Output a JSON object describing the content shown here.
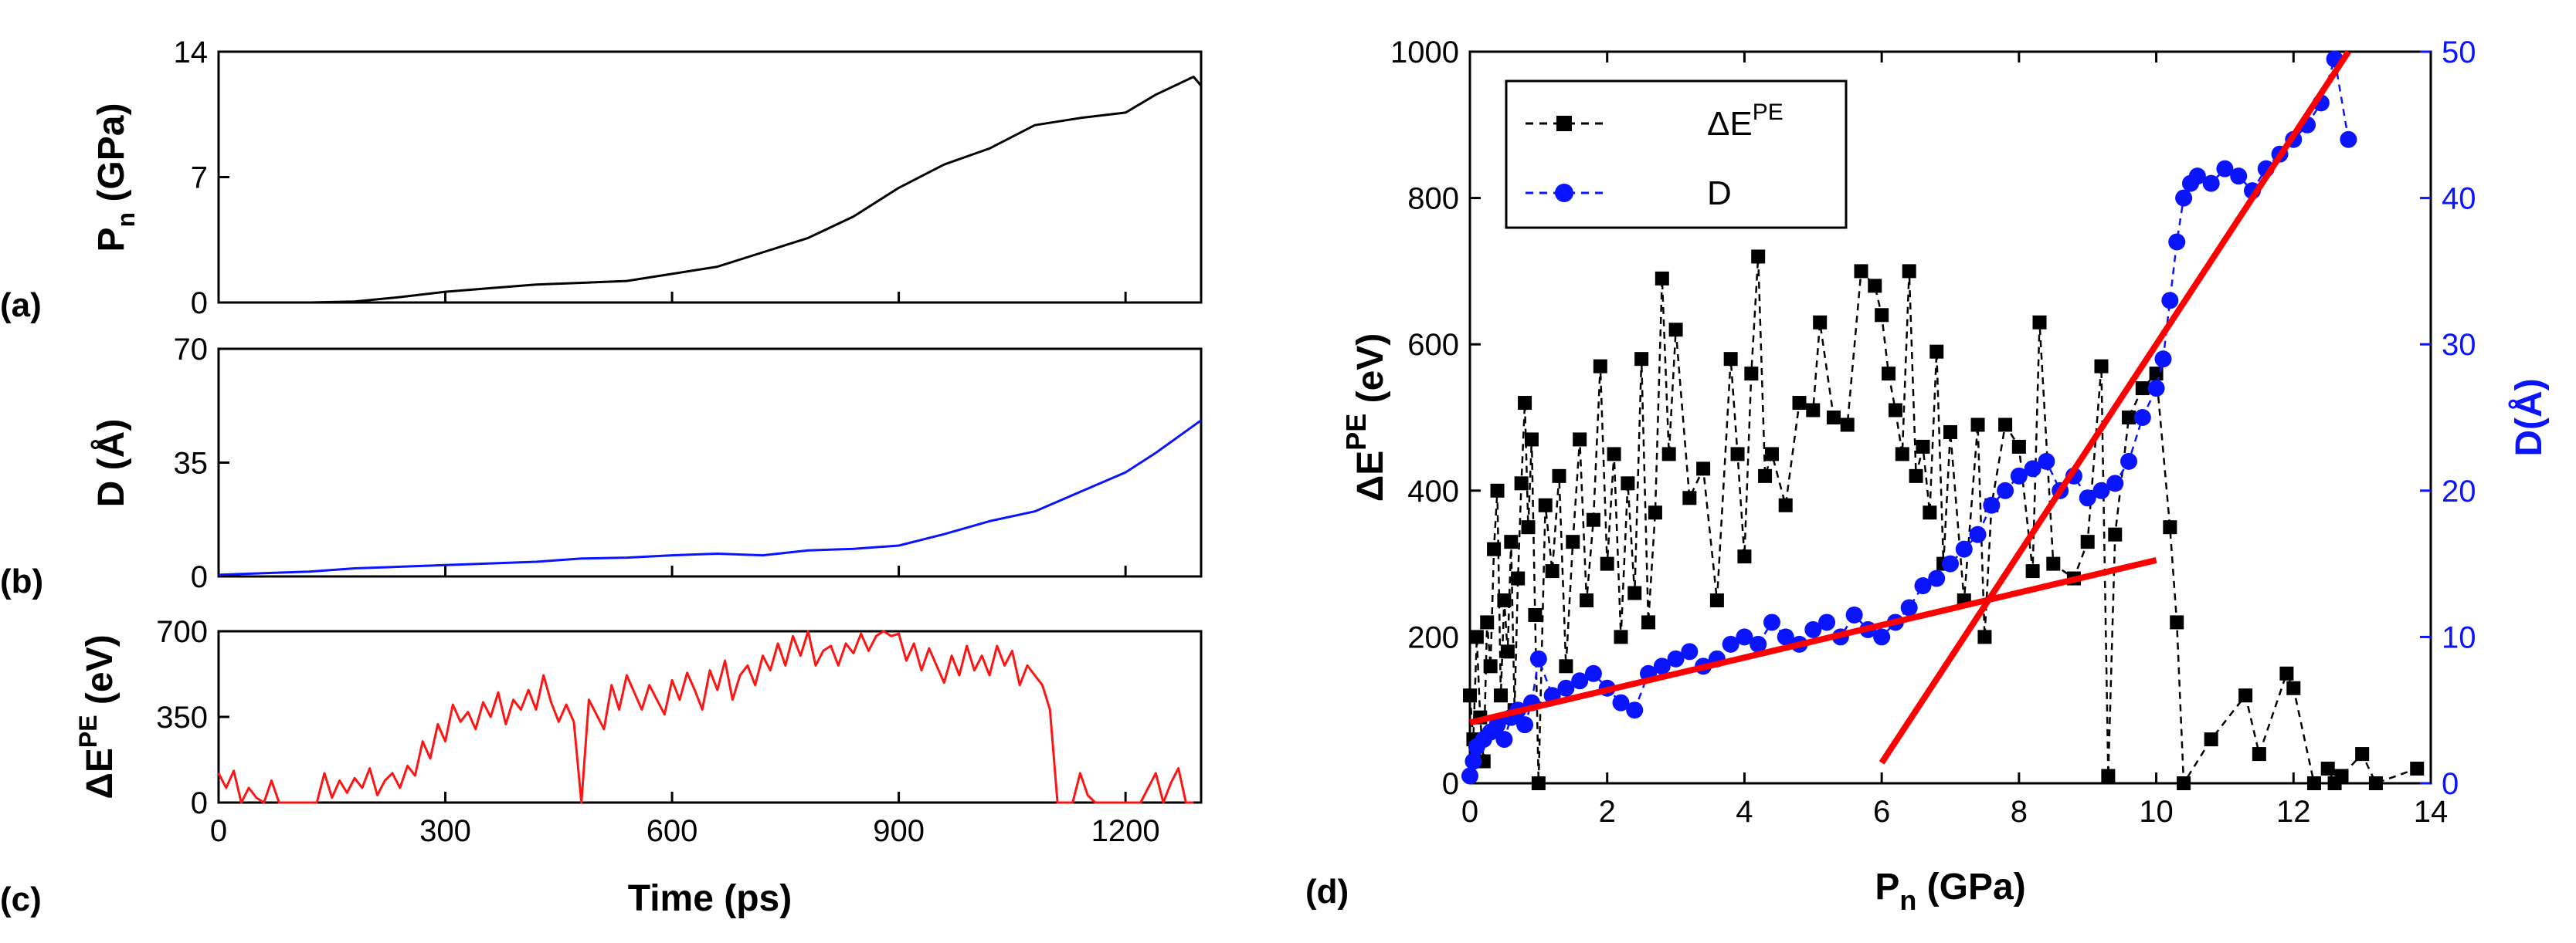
{
  "panel_labels": {
    "a": "(a)",
    "b": "(b)",
    "c": "(c)",
    "d": "(d)"
  },
  "colors": {
    "black": "#000000",
    "blue": "#0a14ff",
    "red": "#ff1414",
    "fit": "#ff0000"
  },
  "chart_data": [
    {
      "id": "a",
      "type": "line",
      "xlabel": "",
      "ylabel_main": "P",
      "ylabel_sub": "n",
      "ylabel_rest": " (GPa)",
      "xlim": [
        0,
        1300
      ],
      "ylim": [
        0,
        14
      ],
      "yticks": [
        0,
        7,
        14
      ],
      "yticklabels": [
        "0",
        "7",
        "14"
      ],
      "x": [
        0,
        60,
        120,
        180,
        240,
        300,
        360,
        420,
        480,
        540,
        600,
        660,
        720,
        780,
        840,
        900,
        960,
        1020,
        1080,
        1140,
        1200,
        1240,
        1270,
        1290,
        1300
      ],
      "y": [
        0,
        0,
        0,
        0.05,
        0.3,
        0.6,
        0.8,
        1.0,
        1.1,
        1.2,
        1.6,
        2.0,
        2.8,
        3.6,
        4.8,
        6.4,
        7.7,
        8.6,
        9.9,
        10.3,
        10.6,
        11.6,
        12.2,
        12.6,
        12.1
      ],
      "color": "#000000"
    },
    {
      "id": "b",
      "type": "line",
      "ylabel": "D (Å)",
      "xlim": [
        0,
        1300
      ],
      "ylim": [
        0,
        70
      ],
      "yticks": [
        0,
        35,
        70
      ],
      "yticklabels": [
        "0",
        "35",
        "70"
      ],
      "x": [
        0,
        60,
        120,
        180,
        240,
        300,
        360,
        420,
        480,
        540,
        600,
        660,
        720,
        780,
        840,
        900,
        960,
        1020,
        1080,
        1140,
        1200,
        1240,
        1270,
        1300
      ],
      "y": [
        0.5,
        1.0,
        1.5,
        2.5,
        3.0,
        3.5,
        4.0,
        4.5,
        5.5,
        5.8,
        6.5,
        7.0,
        6.5,
        8.0,
        8.5,
        9.5,
        13.0,
        17.0,
        20.0,
        26.0,
        32.0,
        38.0,
        43.0,
        48.0
      ],
      "color": "#0a14ff"
    },
    {
      "id": "c",
      "type": "line",
      "ylabel_main": "ΔE",
      "ylabel_sup": "PE",
      "ylabel_rest": " (eV)",
      "xlabel": "Time (ps)",
      "xlim": [
        0,
        1300
      ],
      "ylim": [
        0,
        700
      ],
      "yticks": [
        0,
        350,
        700
      ],
      "yticklabels": [
        "0",
        "350",
        "700"
      ],
      "xticks": [
        0,
        300,
        600,
        900,
        1200
      ],
      "xticklabels": [
        "0",
        "300",
        "600",
        "900",
        "1200"
      ],
      "x": [
        0,
        10,
        20,
        30,
        40,
        50,
        60,
        70,
        80,
        90,
        100,
        110,
        120,
        130,
        140,
        150,
        160,
        170,
        180,
        190,
        200,
        210,
        220,
        230,
        240,
        250,
        260,
        270,
        280,
        290,
        300,
        310,
        320,
        330,
        340,
        350,
        360,
        370,
        380,
        390,
        400,
        410,
        420,
        430,
        440,
        450,
        460,
        470,
        480,
        490,
        500,
        510,
        520,
        530,
        540,
        550,
        560,
        570,
        580,
        590,
        600,
        610,
        620,
        630,
        640,
        650,
        660,
        670,
        680,
        690,
        700,
        710,
        720,
        730,
        740,
        750,
        760,
        770,
        780,
        790,
        800,
        810,
        820,
        830,
        840,
        850,
        860,
        870,
        880,
        890,
        900,
        910,
        920,
        930,
        940,
        950,
        960,
        970,
        980,
        990,
        1000,
        1010,
        1020,
        1030,
        1040,
        1050,
        1060,
        1070,
        1080,
        1090,
        1100,
        1110,
        1120,
        1130,
        1140,
        1150,
        1160,
        1170,
        1180,
        1190,
        1200,
        1210,
        1220,
        1230,
        1240,
        1250,
        1260,
        1270,
        1280,
        1290
      ],
      "y": [
        120,
        60,
        130,
        0,
        60,
        20,
        0,
        90,
        0,
        0,
        0,
        0,
        0,
        0,
        120,
        20,
        90,
        40,
        100,
        60,
        140,
        30,
        90,
        120,
        60,
        150,
        110,
        250,
        180,
        320,
        250,
        400,
        330,
        370,
        300,
        410,
        350,
        450,
        320,
        420,
        380,
        460,
        380,
        520,
        410,
        330,
        400,
        330,
        0,
        420,
        360,
        300,
        480,
        380,
        520,
        450,
        380,
        480,
        420,
        360,
        500,
        420,
        530,
        460,
        380,
        540,
        460,
        580,
        420,
        520,
        560,
        480,
        600,
        540,
        650,
        560,
        680,
        600,
        700,
        560,
        620,
        640,
        560,
        650,
        610,
        690,
        620,
        680,
        700,
        680,
        690,
        580,
        650,
        540,
        630,
        560,
        490,
        600,
        520,
        640,
        540,
        600,
        520,
        640,
        560,
        620,
        480,
        560,
        520,
        480,
        380,
        0,
        0,
        0,
        120,
        30,
        0,
        0,
        0,
        0,
        0,
        0,
        0,
        60,
        120,
        0,
        80,
        140,
        0,
        0
      ],
      "color": "#ff1414"
    },
    {
      "id": "d",
      "type": "scatter",
      "xlabel_main": "P",
      "xlabel_sub": "n",
      "xlabel_rest": " (GPa)",
      "ylabel_main": "ΔE",
      "ylabel_sup": "PE",
      "ylabel_rest": " (eV)",
      "ylabel_right": "D(Å)",
      "xlim": [
        0,
        14
      ],
      "ylim": [
        0,
        1000
      ],
      "ylim_right": [
        0,
        50
      ],
      "xticks": [
        0,
        2,
        4,
        6,
        8,
        10,
        12,
        14
      ],
      "xticklabels": [
        "0",
        "2",
        "4",
        "6",
        "8",
        "10",
        "12",
        "14"
      ],
      "yticks": [
        0,
        200,
        400,
        600,
        800,
        1000
      ],
      "yticklabels": [
        "0",
        "200",
        "400",
        "600",
        "800",
        "1000"
      ],
      "yticks_right": [
        0,
        10,
        20,
        30,
        40,
        50
      ],
      "yticklabels_right": [
        "0",
        "10",
        "20",
        "30",
        "40",
        "50"
      ],
      "legend_location": "top-left",
      "legend": [
        {
          "label_main": "ΔE",
          "label_sup": "PE",
          "color": "#000000",
          "marker": "square"
        },
        {
          "label_main": "D",
          "label_sup": "",
          "color": "#0a14ff",
          "marker": "circle"
        }
      ],
      "series": [
        {
          "name": "ΔE^PE",
          "axis": "left",
          "color": "#000000",
          "marker": "square",
          "x": [
            0.0,
            0.05,
            0.1,
            0.15,
            0.2,
            0.25,
            0.3,
            0.35,
            0.4,
            0.45,
            0.5,
            0.55,
            0.6,
            0.65,
            0.7,
            0.75,
            0.8,
            0.85,
            0.9,
            0.95,
            1.0,
            1.1,
            1.2,
            1.3,
            1.4,
            1.5,
            1.6,
            1.7,
            1.8,
            1.9,
            2.0,
            2.1,
            2.2,
            2.3,
            2.4,
            2.5,
            2.6,
            2.7,
            2.8,
            2.9,
            3.0,
            3.2,
            3.4,
            3.6,
            3.8,
            3.9,
            4.0,
            4.1,
            4.2,
            4.3,
            4.4,
            4.6,
            4.8,
            5.0,
            5.1,
            5.3,
            5.5,
            5.7,
            5.9,
            6.0,
            6.1,
            6.2,
            6.3,
            6.4,
            6.5,
            6.6,
            6.7,
            6.8,
            6.9,
            7.0,
            7.2,
            7.4,
            7.5,
            7.6,
            7.8,
            8.0,
            8.2,
            8.3,
            8.5,
            8.8,
            9.0,
            9.2,
            9.3,
            9.4,
            9.6,
            9.8,
            10.0,
            10.2,
            10.3,
            10.4,
            10.8,
            11.3,
            11.5,
            11.9,
            12.0,
            12.3,
            12.5,
            12.6,
            12.7,
            13.0,
            13.2,
            13.8
          ],
          "y": [
            120,
            60,
            200,
            90,
            30,
            220,
            160,
            320,
            400,
            120,
            250,
            180,
            330,
            100,
            280,
            410,
            520,
            350,
            470,
            230,
            0,
            380,
            290,
            420,
            160,
            330,
            470,
            250,
            360,
            570,
            300,
            450,
            200,
            410,
            260,
            580,
            220,
            370,
            690,
            450,
            620,
            390,
            430,
            250,
            580,
            450,
            310,
            560,
            720,
            420,
            450,
            380,
            520,
            510,
            630,
            500,
            490,
            700,
            680,
            640,
            560,
            510,
            450,
            700,
            420,
            460,
            370,
            590,
            300,
            480,
            250,
            490,
            200,
            380,
            490,
            460,
            290,
            630,
            300,
            280,
            330,
            570,
            10,
            340,
            500,
            540,
            560,
            350,
            220,
            0,
            60,
            120,
            40,
            150,
            130,
            0,
            20,
            0,
            10,
            40,
            0,
            20
          ],
          "trace_order": "sequential"
        },
        {
          "name": "D",
          "axis": "right",
          "color": "#0a14ff",
          "marker": "circle",
          "x": [
            0.0,
            0.05,
            0.1,
            0.2,
            0.3,
            0.4,
            0.5,
            0.6,
            0.7,
            0.8,
            0.9,
            1.0,
            1.2,
            1.4,
            1.6,
            1.8,
            2.0,
            2.2,
            2.4,
            2.6,
            2.8,
            3.0,
            3.2,
            3.4,
            3.6,
            3.8,
            4.0,
            4.2,
            4.4,
            4.6,
            4.8,
            5.0,
            5.2,
            5.4,
            5.6,
            5.8,
            6.0,
            6.2,
            6.4,
            6.6,
            6.8,
            7.0,
            7.2,
            7.4,
            7.6,
            7.8,
            8.0,
            8.2,
            8.4,
            8.6,
            8.8,
            9.0,
            9.2,
            9.4,
            9.6,
            9.8,
            10.0,
            10.1,
            10.2,
            10.3,
            10.4,
            10.5,
            10.6,
            10.8,
            11.0,
            11.2,
            11.4,
            11.6,
            11.8,
            12.0,
            12.2,
            12.4,
            12.6,
            12.8
          ],
          "y": [
            0.5,
            1.5,
            2.5,
            3.0,
            3.5,
            4.0,
            3.0,
            4.5,
            5.0,
            4.0,
            5.5,
            8.5,
            6.0,
            6.5,
            7.0,
            7.5,
            6.5,
            5.5,
            5.0,
            7.5,
            8.0,
            8.5,
            9.0,
            8.0,
            8.5,
            9.5,
            10.0,
            9.5,
            11.0,
            10.0,
            9.5,
            10.5,
            11.0,
            10.0,
            11.5,
            10.5,
            10.0,
            11.0,
            12.0,
            13.5,
            14.0,
            15.0,
            16.0,
            17.0,
            19.0,
            20.0,
            21.0,
            21.5,
            22.0,
            20.0,
            21.0,
            19.5,
            20.0,
            20.5,
            22.0,
            25.0,
            27.0,
            29.0,
            33.0,
            37.0,
            40.0,
            41.0,
            41.5,
            41.0,
            42.0,
            41.5,
            40.5,
            42.0,
            43.0,
            44.0,
            45.0,
            46.5,
            49.5,
            44.0
          ],
          "trace_order": "sequential"
        }
      ],
      "fit_lines": [
        {
          "axis": "left",
          "color": "#ff0000",
          "x": [
            0.0,
            10.0
          ],
          "y": [
            83,
            305
          ]
        },
        {
          "axis": "left",
          "color": "#ff0000",
          "x": [
            6.0,
            12.8
          ],
          "y": [
            28,
            1000
          ]
        }
      ]
    }
  ]
}
